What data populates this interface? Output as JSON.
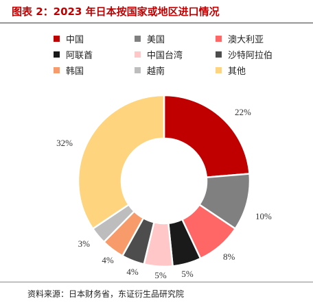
{
  "title": "图表 2：2023 年日本按国家或地区进口情况",
  "source": "资料来源：日本财务省，东证衍生品研究院",
  "chart_data": {
    "type": "pie",
    "variant": "donut",
    "title": "图表 2：2023 年日本按国家或地区进口情况",
    "unit": "%",
    "legend_position": "top",
    "categories": [
      "中国",
      "美国",
      "澳大利亚",
      "阿联酋",
      "中国台湾",
      "沙特阿拉伯",
      "韩国",
      "越南",
      "其他"
    ],
    "values": [
      22,
      10,
      8,
      5,
      5,
      4,
      4,
      3,
      32
    ],
    "data_labels": [
      "22%",
      "10%",
      "8%",
      "5%",
      "5%",
      "4%",
      "4%",
      "3%",
      "32%"
    ],
    "colors": [
      "#c00000",
      "#808080",
      "#ff6666",
      "#1a1a1a",
      "#ffc7c7",
      "#4d4d4d",
      "#f79b6b",
      "#bdbdbd",
      "#ffd47f"
    ]
  }
}
